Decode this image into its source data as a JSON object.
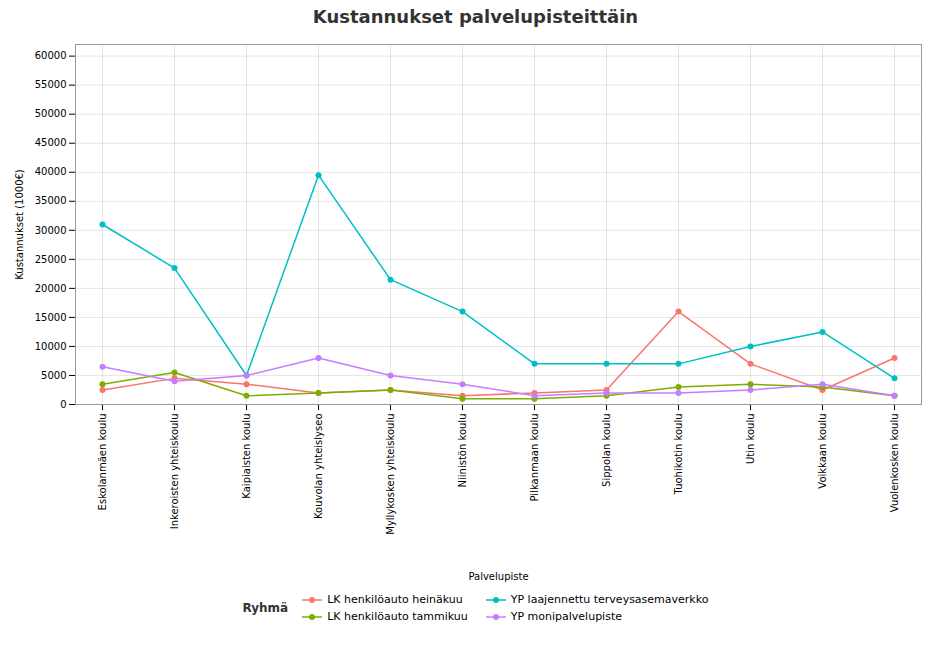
{
  "chart_data": {
    "type": "line",
    "title": "Kustannukset palvelupisteittäin",
    "xlabel": "Palvelupiste",
    "ylabel": "Kustannukset (1000€)",
    "legend_title": "Ryhmä",
    "categories": [
      "Eskolanmäen koulu",
      "Inkeroisten yhteiskoulu",
      "Kaipiaisten koulu",
      "Kouvolan yhteislyseo",
      "Myllykosken yhteiskoulu",
      "Niinistön koulu",
      "Pilkanmaan koulu",
      "Sippolan koulu",
      "Tuohikotin koulu",
      "Utin koulu",
      "Voikkaan koulu",
      "Vuolenkosken koulu"
    ],
    "series": [
      {
        "name": "LK henkilöauto heinäkuu",
        "color": "#F8766D",
        "values": [
          2500,
          4500,
          3500,
          2000,
          2500,
          1500,
          2000,
          2500,
          16000,
          7000,
          2500,
          8000
        ]
      },
      {
        "name": "YP laajennettu terveysasemaverkko",
        "color": "#00BFC4",
        "values": [
          31000,
          23500,
          5000,
          39500,
          21500,
          16000,
          7000,
          7000,
          7000,
          10000,
          12500,
          4500
        ]
      },
      {
        "name": "LK henkilöauto tammikuu",
        "color": "#7CAE00",
        "values": [
          3500,
          5500,
          1500,
          2000,
          2500,
          1000,
          1000,
          1500,
          3000,
          3500,
          3000,
          1500
        ]
      },
      {
        "name": "YP monipalvelupiste",
        "color": "#C77CFF",
        "values": [
          6500,
          4000,
          5000,
          8000,
          5000,
          3500,
          1500,
          2000,
          2000,
          2500,
          3500,
          1500
        ]
      }
    ],
    "ylim": [
      0,
      62000
    ],
    "yticks": [
      0,
      5000,
      10000,
      15000,
      20000,
      25000,
      30000,
      35000,
      40000,
      45000,
      50000,
      55000,
      60000
    ],
    "grid": true,
    "legend": "bottom",
    "marker": "circle"
  }
}
